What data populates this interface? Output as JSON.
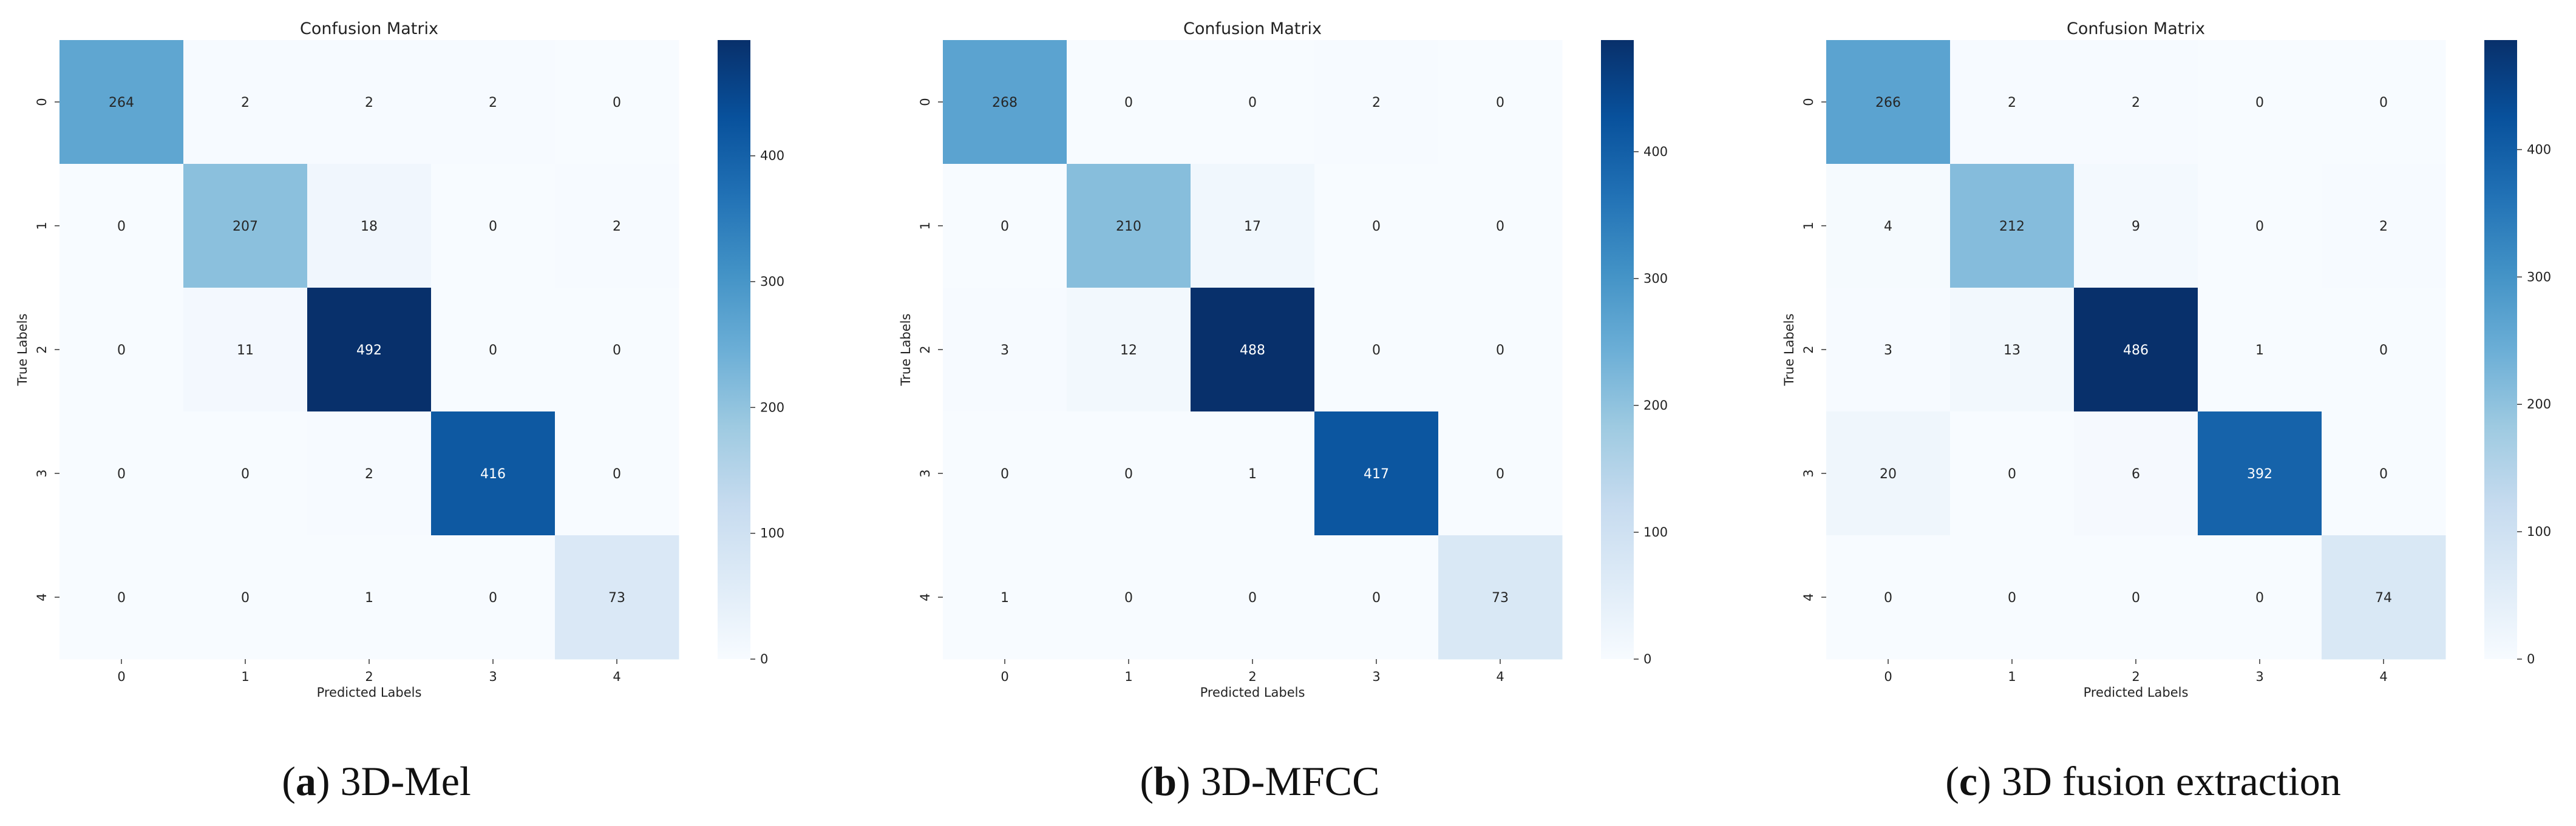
{
  "chart_data": [
    {
      "type": "heatmap",
      "title": "Confusion Matrix",
      "xlabel": "Predicted Labels",
      "ylabel": "True Labels",
      "x_ticks": [
        "0",
        "1",
        "2",
        "3",
        "4"
      ],
      "y_ticks": [
        "0",
        "1",
        "2",
        "3",
        "4"
      ],
      "matrix": [
        [
          264,
          2,
          2,
          2,
          0
        ],
        [
          0,
          207,
          18,
          0,
          2
        ],
        [
          0,
          11,
          492,
          0,
          0
        ],
        [
          0,
          0,
          2,
          416,
          0
        ],
        [
          0,
          0,
          1,
          0,
          73
        ]
      ],
      "colorbar_ticks": [
        0,
        100,
        200,
        300,
        400
      ],
      "colorbar_range": [
        0,
        492
      ],
      "caption_letter": "a",
      "caption_text": "3D-Mel"
    },
    {
      "type": "heatmap",
      "title": "Confusion Matrix",
      "xlabel": "Predicted Labels",
      "ylabel": "True Labels",
      "x_ticks": [
        "0",
        "1",
        "2",
        "3",
        "4"
      ],
      "y_ticks": [
        "0",
        "1",
        "2",
        "3",
        "4"
      ],
      "matrix": [
        [
          268,
          0,
          0,
          2,
          0
        ],
        [
          0,
          210,
          17,
          0,
          0
        ],
        [
          3,
          12,
          488,
          0,
          0
        ],
        [
          0,
          0,
          1,
          417,
          0
        ],
        [
          1,
          0,
          0,
          0,
          73
        ]
      ],
      "colorbar_ticks": [
        0,
        100,
        200,
        300,
        400
      ],
      "colorbar_range": [
        0,
        488
      ],
      "caption_letter": "b",
      "caption_text": "3D-MFCC"
    },
    {
      "type": "heatmap",
      "title": "Confusion Matrix",
      "xlabel": "Predicted Labels",
      "ylabel": "True Labels",
      "x_ticks": [
        "0",
        "1",
        "2",
        "3",
        "4"
      ],
      "y_ticks": [
        "0",
        "1",
        "2",
        "3",
        "4"
      ],
      "matrix": [
        [
          266,
          2,
          2,
          0,
          0
        ],
        [
          4,
          212,
          9,
          0,
          2
        ],
        [
          3,
          13,
          486,
          1,
          0
        ],
        [
          20,
          0,
          6,
          392,
          0
        ],
        [
          0,
          0,
          0,
          0,
          74
        ]
      ],
      "colorbar_ticks": [
        0,
        100,
        200,
        300,
        400
      ],
      "colorbar_range": [
        0,
        486
      ],
      "caption_letter": "c",
      "caption_text": "3D fusion extraction"
    }
  ]
}
